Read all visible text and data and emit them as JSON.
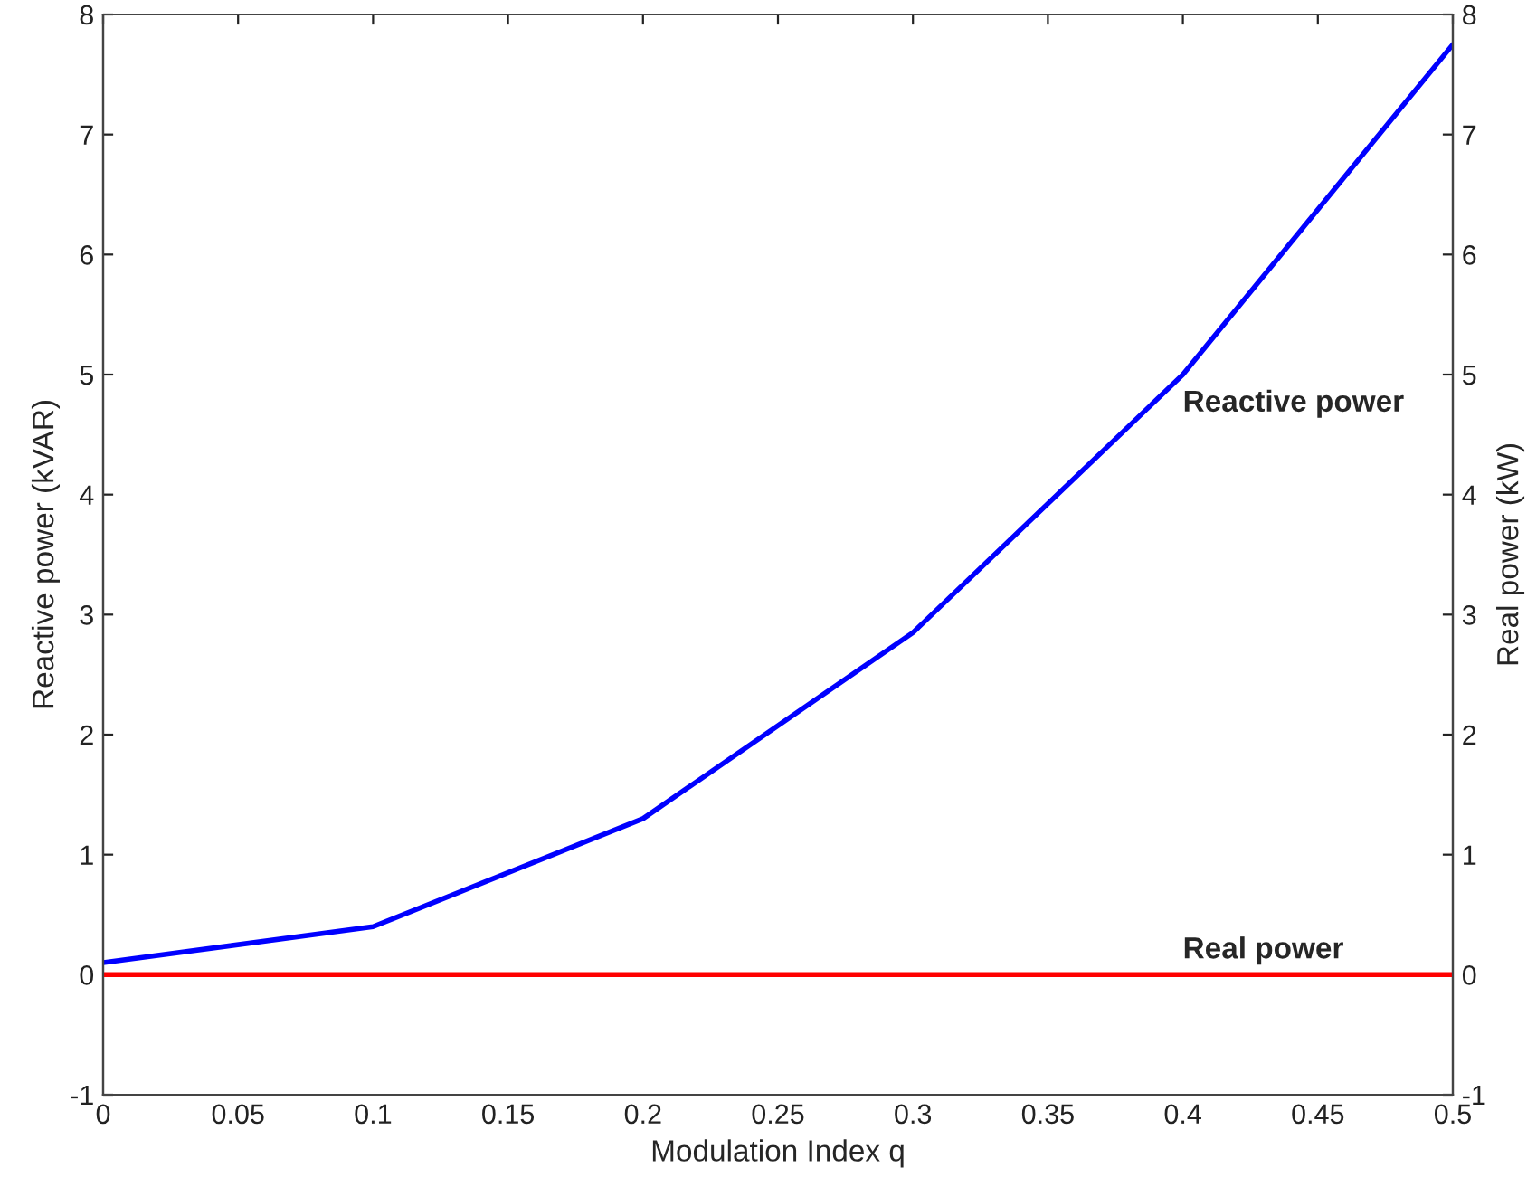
{
  "chart_data": {
    "type": "line",
    "xlabel": "Modulation Index q",
    "ylabel": "Reactive power (kVAR)",
    "y2label": "Real power (kW)",
    "x": [
      0,
      0.1,
      0.2,
      0.3,
      0.4,
      0.5
    ],
    "series": [
      {
        "name": "Reactive power",
        "color": "#0000ff",
        "values": [
          0.1,
          0.4,
          1.3,
          2.85,
          5.0,
          7.75
        ]
      },
      {
        "name": "Real power",
        "color": "#ff0000",
        "values": [
          0,
          0,
          0,
          0,
          0,
          0
        ],
        "axis": "y2"
      }
    ],
    "xlim": [
      0,
      0.5
    ],
    "xticks": [
      0,
      0.05,
      0.1,
      0.15,
      0.2,
      0.25,
      0.3,
      0.35,
      0.4,
      0.45,
      0.5
    ],
    "ylim": [
      -1,
      8
    ],
    "yticks": [
      -1,
      0,
      1,
      2,
      3,
      4,
      5,
      6,
      7,
      8
    ],
    "y2lim": [
      -1,
      8
    ],
    "y2ticks": [
      -1,
      0,
      1,
      2,
      3,
      4,
      5,
      6,
      7,
      8
    ],
    "grid": false,
    "legend": false
  }
}
